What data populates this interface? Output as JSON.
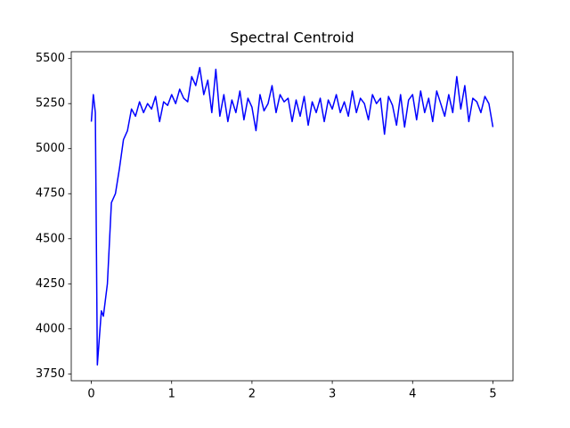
{
  "chart_data": {
    "type": "line",
    "title": "Spectral Centroid",
    "x": [
      0,
      0.025,
      0.05,
      0.075,
      0.1,
      0.125,
      0.15,
      0.2,
      0.25,
      0.3,
      0.35,
      0.4,
      0.45,
      0.5,
      0.55,
      0.6,
      0.65,
      0.7,
      0.75,
      0.8,
      0.85,
      0.9,
      0.95,
      1.0,
      1.05,
      1.1,
      1.15,
      1.2,
      1.25,
      1.3,
      1.35,
      1.4,
      1.45,
      1.5,
      1.55,
      1.6,
      1.65,
      1.7,
      1.75,
      1.8,
      1.85,
      1.9,
      1.95,
      2.0,
      2.05,
      2.1,
      2.15,
      2.2,
      2.25,
      2.3,
      2.35,
      2.4,
      2.45,
      2.5,
      2.55,
      2.6,
      2.65,
      2.7,
      2.75,
      2.8,
      2.85,
      2.9,
      2.95,
      3.0,
      3.05,
      3.1,
      3.15,
      3.2,
      3.25,
      3.3,
      3.35,
      3.4,
      3.45,
      3.5,
      3.55,
      3.6,
      3.65,
      3.7,
      3.75,
      3.8,
      3.85,
      3.9,
      3.95,
      4.0,
      4.05,
      4.1,
      4.15,
      4.2,
      4.25,
      4.3,
      4.35,
      4.4,
      4.45,
      4.5,
      4.55,
      4.6,
      4.65,
      4.7,
      4.75,
      4.8,
      4.85,
      4.9,
      4.95,
      5.0
    ],
    "values": [
      5150,
      5300,
      5200,
      3800,
      3950,
      4100,
      4070,
      4250,
      4700,
      4750,
      4890,
      5050,
      5100,
      5220,
      5180,
      5260,
      5200,
      5250,
      5220,
      5290,
      5150,
      5260,
      5240,
      5300,
      5250,
      5330,
      5280,
      5260,
      5400,
      5350,
      5450,
      5300,
      5380,
      5200,
      5440,
      5180,
      5300,
      5150,
      5270,
      5200,
      5320,
      5160,
      5280,
      5230,
      5100,
      5300,
      5210,
      5250,
      5350,
      5200,
      5300,
      5260,
      5280,
      5150,
      5270,
      5180,
      5290,
      5130,
      5260,
      5200,
      5280,
      5150,
      5270,
      5220,
      5300,
      5200,
      5260,
      5180,
      5320,
      5200,
      5280,
      5250,
      5160,
      5300,
      5250,
      5280,
      5080,
      5290,
      5240,
      5130,
      5300,
      5120,
      5270,
      5300,
      5160,
      5320,
      5200,
      5280,
      5150,
      5320,
      5250,
      5180,
      5300,
      5200,
      5400,
      5220,
      5350,
      5150,
      5280,
      5260,
      5200,
      5290,
      5250,
      5120
    ],
    "color": "#0000ff",
    "xlim": [
      -0.25,
      5.25
    ],
    "xticks": [
      0,
      1,
      2,
      3,
      4,
      5
    ],
    "ylim": [
      3712,
      5538
    ],
    "yticks": [
      3750,
      4000,
      4250,
      4500,
      4750,
      5000,
      5250,
      5500
    ],
    "grid": false
  }
}
